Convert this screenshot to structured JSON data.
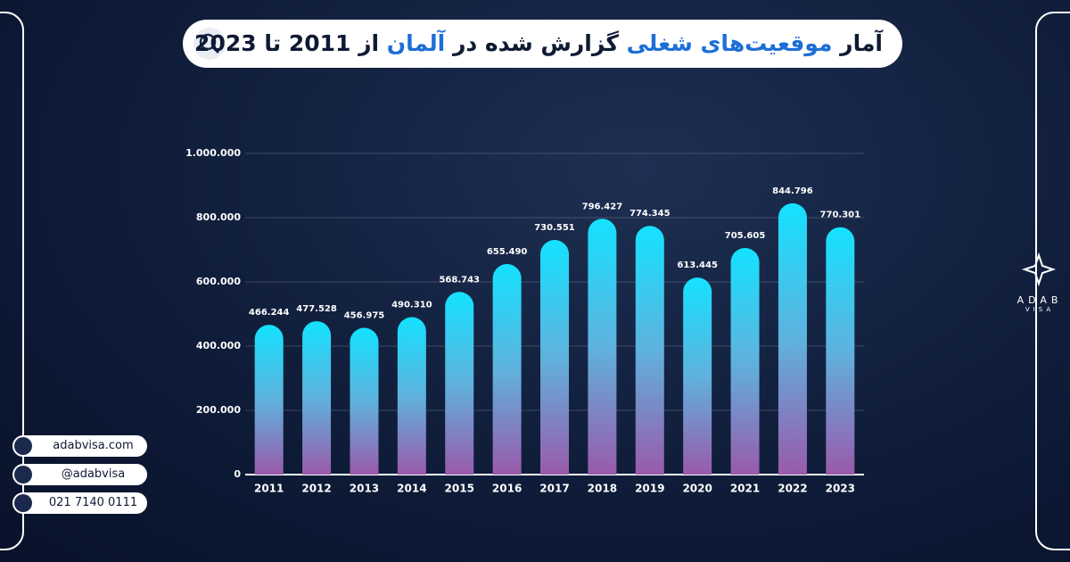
{
  "chart_data": {
    "type": "bar",
    "title": [
      {
        "text": "آمار ",
        "color": "#0e1a33"
      },
      {
        "text": "موقعیت‌های شغلی",
        "color": "#1d6fd6"
      },
      {
        "text": " گزارش شده در ",
        "color": "#0e1a33"
      },
      {
        "text": "آلمان",
        "color": "#1d6fd6"
      },
      {
        "text": " از 2011 تا 2023",
        "color": "#0e1a33"
      }
    ],
    "categories": [
      "2011",
      "2012",
      "2013",
      "2014",
      "2015",
      "2016",
      "2017",
      "2018",
      "2019",
      "2020",
      "2021",
      "2022",
      "2023"
    ],
    "values": [
      466244,
      477528,
      456975,
      490310,
      568743,
      655490,
      730551,
      796427,
      774345,
      613445,
      705605,
      844796,
      770301
    ],
    "value_labels": [
      "466.244",
      "477.528",
      "456.975",
      "490.310",
      "568.743",
      "655.490",
      "730.551",
      "796.427",
      "774.345",
      "613.445",
      "705.605",
      "844.796",
      "770.301"
    ],
    "ylim": [
      0,
      1000000
    ],
    "yticks": [
      0,
      {
        "value": 200000,
        "label": "200.000"
      },
      {
        "value": 400000,
        "label": "400.000"
      },
      {
        "value": 600000,
        "label": "600.000"
      },
      {
        "value": 800000,
        "label": "800.000"
      },
      {
        "value": 1000000,
        "label": "1.000.000"
      }
    ],
    "grid": true
  },
  "contacts": {
    "website": "adabvisa.com",
    "instagram": "@adabvisa",
    "phone": "021 7140 0111"
  },
  "logo": {
    "name": "ADAB",
    "sub": "VISA"
  }
}
